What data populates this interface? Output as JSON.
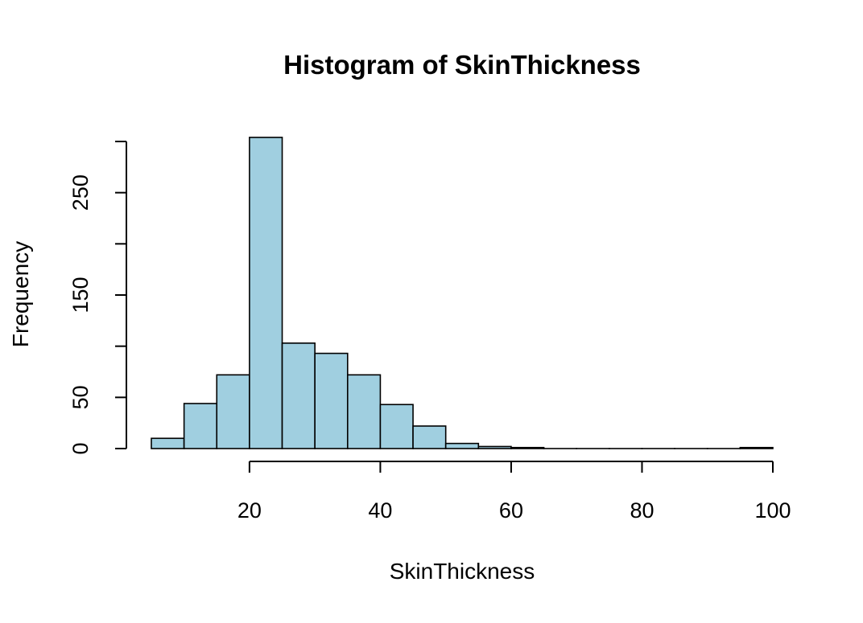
{
  "chart_data": {
    "type": "bar",
    "title": "Histogram of SkinThickness",
    "xlabel": "SkinThickness",
    "ylabel": "Frequency",
    "bins": [
      {
        "x0": 5,
        "x1": 10,
        "count": 10
      },
      {
        "x0": 10,
        "x1": 15,
        "count": 44
      },
      {
        "x0": 15,
        "x1": 20,
        "count": 72
      },
      {
        "x0": 20,
        "x1": 25,
        "count": 304
      },
      {
        "x0": 25,
        "x1": 30,
        "count": 103
      },
      {
        "x0": 30,
        "x1": 35,
        "count": 93
      },
      {
        "x0": 35,
        "x1": 40,
        "count": 72
      },
      {
        "x0": 40,
        "x1": 45,
        "count": 43
      },
      {
        "x0": 45,
        "x1": 50,
        "count": 22
      },
      {
        "x0": 50,
        "x1": 55,
        "count": 5
      },
      {
        "x0": 55,
        "x1": 60,
        "count": 2
      },
      {
        "x0": 60,
        "x1": 65,
        "count": 1
      },
      {
        "x0": 65,
        "x1": 70,
        "count": 0
      },
      {
        "x0": 70,
        "x1": 75,
        "count": 0
      },
      {
        "x0": 75,
        "x1": 80,
        "count": 0
      },
      {
        "x0": 80,
        "x1": 85,
        "count": 0
      },
      {
        "x0": 85,
        "x1": 90,
        "count": 0
      },
      {
        "x0": 90,
        "x1": 95,
        "count": 0
      },
      {
        "x0": 95,
        "x1": 100,
        "count": 1
      }
    ],
    "xlim": [
      5,
      100
    ],
    "ylim": [
      0,
      300
    ],
    "x_ticks": [
      20,
      40,
      60,
      80,
      100
    ],
    "y_ticks": [
      0,
      50,
      100,
      150,
      200,
      250,
      300
    ],
    "y_tick_labels": [
      "0",
      "50",
      "",
      "150",
      "",
      "250",
      ""
    ],
    "bar_color": "#A0CFE0",
    "grid": false
  }
}
